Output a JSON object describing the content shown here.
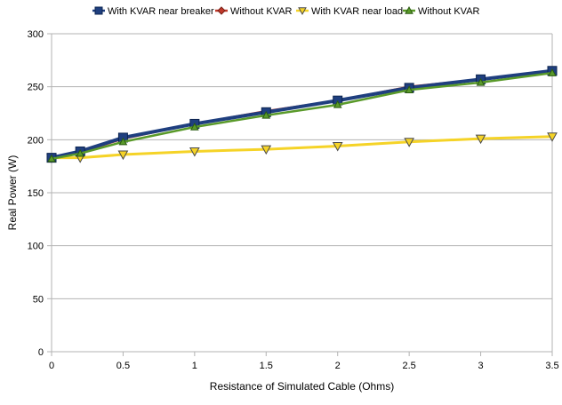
{
  "chart_data": {
    "type": "line",
    "title": "",
    "xlabel": "Resistance of Simulated Cable (Ohms)",
    "ylabel": "Real Power (W)",
    "xlim": [
      0,
      3.5
    ],
    "ylim": [
      0,
      300
    ],
    "x_ticks": [
      "0",
      "0.5",
      "1",
      "1.5",
      "2",
      "2.5",
      "3",
      "3.5"
    ],
    "y_ticks": [
      "0",
      "50",
      "100",
      "150",
      "200",
      "250",
      "300"
    ],
    "x_tick_values": [
      0,
      0.5,
      1,
      1.5,
      2,
      2.5,
      3,
      3.5
    ],
    "y_tick_values": [
      0,
      50,
      100,
      150,
      200,
      250,
      300
    ],
    "grid": "horizontal",
    "legend_position": "top",
    "series": [
      {
        "name": "With KVAR near breaker",
        "color": "#1f3f7f",
        "marker": "square",
        "x": [
          0,
          0.2,
          0.5,
          1,
          1.5,
          2,
          2.5,
          3,
          3.5
        ],
        "values": [
          183,
          189,
          202,
          215,
          226,
          237,
          249,
          257,
          265
        ]
      },
      {
        "name": "Without KVAR",
        "color": "#c0392b",
        "marker": "diamond",
        "x": [
          0,
          0.2,
          0.5,
          1,
          1.5,
          2,
          2.5,
          3,
          3.5
        ],
        "values": [
          183,
          188,
          201,
          215,
          227,
          237,
          250,
          257,
          265
        ]
      },
      {
        "name": "With KVAR near load",
        "color": "#f5d327",
        "marker": "triangle-down",
        "x": [
          0,
          0.2,
          0.5,
          1,
          1.5,
          2,
          2.5,
          3,
          3.5
        ],
        "values": [
          183,
          183,
          186,
          189,
          191,
          194,
          198,
          201,
          203
        ]
      },
      {
        "name": "Without KVAR",
        "color": "#5a9a2a",
        "marker": "triangle-up",
        "x": [
          0,
          0.2,
          0.5,
          1,
          1.5,
          2,
          2.5,
          3,
          3.5
        ],
        "values": [
          182,
          187,
          198,
          212,
          223,
          233,
          247,
          254,
          263
        ]
      }
    ]
  }
}
